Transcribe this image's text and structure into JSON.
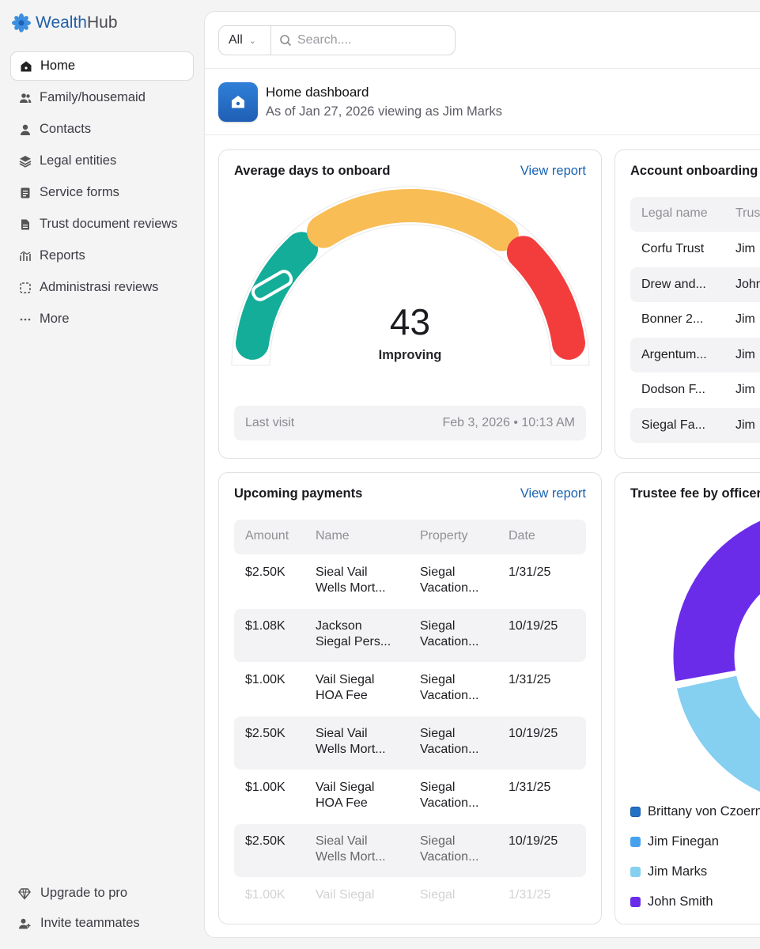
{
  "brand": {
    "name_part1": "Wealth",
    "name_part2": "Hub",
    "accent": "#2360a8"
  },
  "sidebar": {
    "items": [
      {
        "label": "Home",
        "icon": "home-icon",
        "active": true
      },
      {
        "label": "Family/housemaid",
        "icon": "users-icon"
      },
      {
        "label": "Contacts",
        "icon": "person-icon"
      },
      {
        "label": "Legal entities",
        "icon": "layers-icon"
      },
      {
        "label": "Service forms",
        "icon": "form-icon"
      },
      {
        "label": "Trust document reviews",
        "icon": "document-icon"
      },
      {
        "label": "Reports",
        "icon": "reports-icon"
      },
      {
        "label": "Administrasi reviews",
        "icon": "review-icon"
      },
      {
        "label": "More",
        "icon": "more-icon"
      }
    ],
    "upgrade_label": "Upgrade to pro",
    "invite_label": "Invite teammates"
  },
  "search": {
    "filter_label": "All",
    "placeholder": "Search...."
  },
  "header": {
    "title": "Home dashboard",
    "subtitle": "As of Jan 27, 2026 viewing as Jim Marks"
  },
  "onboard_card": {
    "title": "Average days to onboard",
    "link": "View report",
    "value": "43",
    "status": "Improving",
    "last_visit_label": "Last visit",
    "last_visit_value": "Feb 3, 2026 • 10:13 AM",
    "colors": {
      "good": "#13ad99",
      "mid": "#f8bd55",
      "bad": "#f33d3d"
    }
  },
  "account_card": {
    "title": "Account onboarding v",
    "columns": [
      "Legal name",
      "Trus"
    ],
    "rows": [
      [
        "Corfu Trust",
        "Jim"
      ],
      [
        "Drew and...",
        "John"
      ],
      [
        "Bonner 2...",
        "Jim"
      ],
      [
        "Argentum...",
        "Jim"
      ],
      [
        "Dodson F...",
        "Jim"
      ],
      [
        "Siegal Fa...",
        "Jim"
      ]
    ]
  },
  "payments_card": {
    "title": "Upcoming payments",
    "link": "View report",
    "columns": [
      "Amount",
      "Name",
      "Property",
      "Date"
    ],
    "rows": [
      {
        "amount": "$2.50K",
        "name1": "Sieal Vail",
        "name2": "Wells Mort...",
        "prop1": "Siegal",
        "prop2": "Vacation...",
        "date": "1/31/25"
      },
      {
        "amount": "$1.08K",
        "name1": "Jackson",
        "name2": "Siegal Pers...",
        "prop1": "Siegal",
        "prop2": "Vacation...",
        "date": "10/19/25"
      },
      {
        "amount": "$1.00K",
        "name1": "Vail Siegal",
        "name2": "HOA Fee",
        "prop1": "Siegal",
        "prop2": "Vacation...",
        "date": "1/31/25"
      },
      {
        "amount": "$2.50K",
        "name1": "Sieal Vail",
        "name2": "Wells Mort...",
        "prop1": "Siegal",
        "prop2": "Vacation...",
        "date": "10/19/25"
      },
      {
        "amount": "$1.00K",
        "name1": "Vail Siegal",
        "name2": "HOA Fee",
        "prop1": "Siegal",
        "prop2": "Vacation...",
        "date": "1/31/25"
      },
      {
        "amount": "$2.50K",
        "name1": "Sieal Vail",
        "name2": "Wells Mort...",
        "prop1": "Siegal",
        "prop2": "Vacation...",
        "date": "10/19/25"
      },
      {
        "amount": "$1.00K",
        "name1": "Vail Siegal",
        "name2": "",
        "prop1": "Siegal",
        "prop2": "",
        "date": "1/31/25"
      }
    ]
  },
  "trustee_card": {
    "title": "Trustee fee by officer",
    "legend": [
      {
        "name": "Brittany von Czoern",
        "color": "#2271c8"
      },
      {
        "name": "Jim Finegan",
        "color": "#47a2ee"
      },
      {
        "name": "Jim Marks",
        "color": "#85cff0"
      },
      {
        "name": "John Smith",
        "color": "#6b2cea"
      }
    ]
  }
}
